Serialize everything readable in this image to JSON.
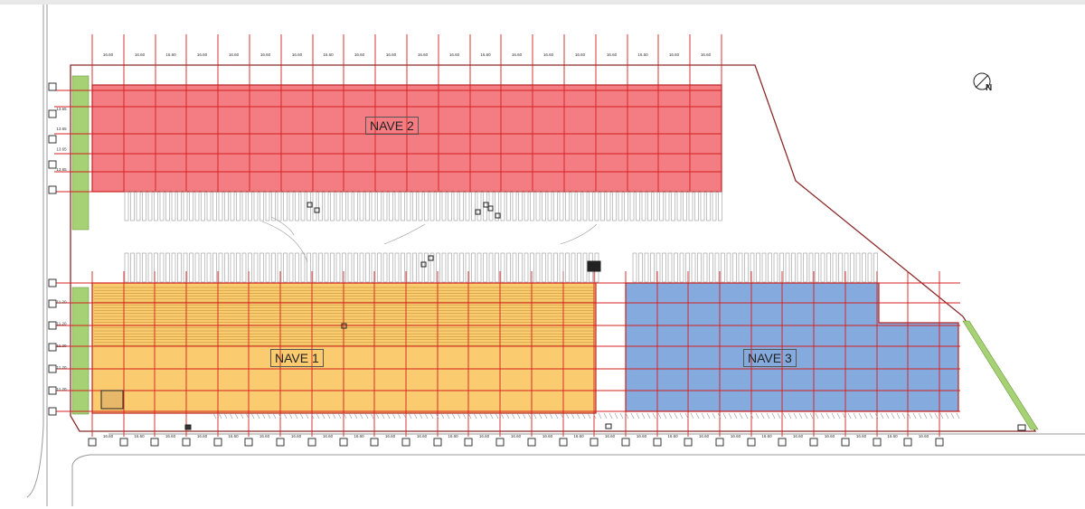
{
  "buildings": [
    {
      "id": "nave-2",
      "label": "NAVE 2",
      "color": "#f2767b"
    },
    {
      "id": "nave-1",
      "label": "NAVE 1",
      "color": "#fbc868"
    },
    {
      "id": "nave-3",
      "label": "NAVE 3",
      "color": "#7ea6dc"
    }
  ],
  "dimensions": {
    "bay_spacing": "16.60",
    "nave2_row_spacing": "13.65",
    "nave1_row_spacing": "11.20"
  },
  "north_indicator": {
    "letter": "N"
  },
  "colors": {
    "grid_line": "#d32020",
    "site_boundary": "#8b2a2a",
    "landscape_strip": "#9fcf6a",
    "road_line": "#999999",
    "dock_line": "#9a9a9a"
  },
  "icons": [
    "north-arrow-icon"
  ]
}
